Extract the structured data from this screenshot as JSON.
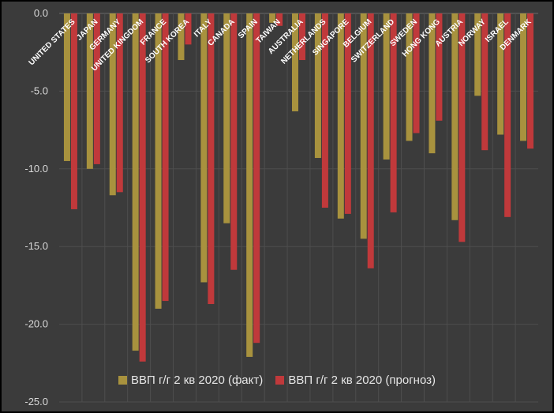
{
  "chart_data": {
    "type": "bar",
    "categories": [
      "UNITED STATES",
      "JAPAN",
      "GERMANY",
      "UNITED KINGDOM",
      "FRANCE",
      "SOUTH KOREA",
      "ITALY",
      "CANADA",
      "SPAIN",
      "TAIWAN",
      "AUSTRALIA",
      "NETHERLANDS",
      "SINGAPORE",
      "BELGIUM",
      "SWITZERLAND",
      "SWEDEN",
      "HONG KONG",
      "AUSTRIA",
      "NORWAY",
      "ISRAEL",
      "DENMARK"
    ],
    "series": [
      {
        "name": "ВВП г/г 2 кв 2020 (факт)",
        "color": "#a8923e",
        "values": [
          -9.5,
          -10.0,
          -11.7,
          -21.7,
          -19.0,
          -3.0,
          -17.3,
          -13.5,
          -22.1,
          -0.6,
          -6.3,
          -9.3,
          -13.2,
          -14.5,
          -9.4,
          -8.2,
          -9.0,
          -13.3,
          -5.3,
          -7.8,
          -8.2
        ]
      },
      {
        "name": "ВВП г/г 2 кв 2020 (прогноз)",
        "color": "#c0393b",
        "values": [
          -12.6,
          -9.7,
          -11.5,
          -22.4,
          -18.5,
          -2.0,
          -18.7,
          -16.5,
          -21.2,
          -0.8,
          -3.0,
          -12.5,
          -12.9,
          -16.4,
          -12.8,
          -7.7,
          -6.9,
          -14.7,
          -8.8,
          -13.1,
          -8.7
        ]
      }
    ],
    "yticks": [
      "0.0",
      "-5.0",
      "-10.0",
      "-15.0",
      "-20.0",
      "-25.0"
    ],
    "ylim": [
      -25,
      0
    ],
    "grid": true,
    "legend_position": "bottom"
  }
}
